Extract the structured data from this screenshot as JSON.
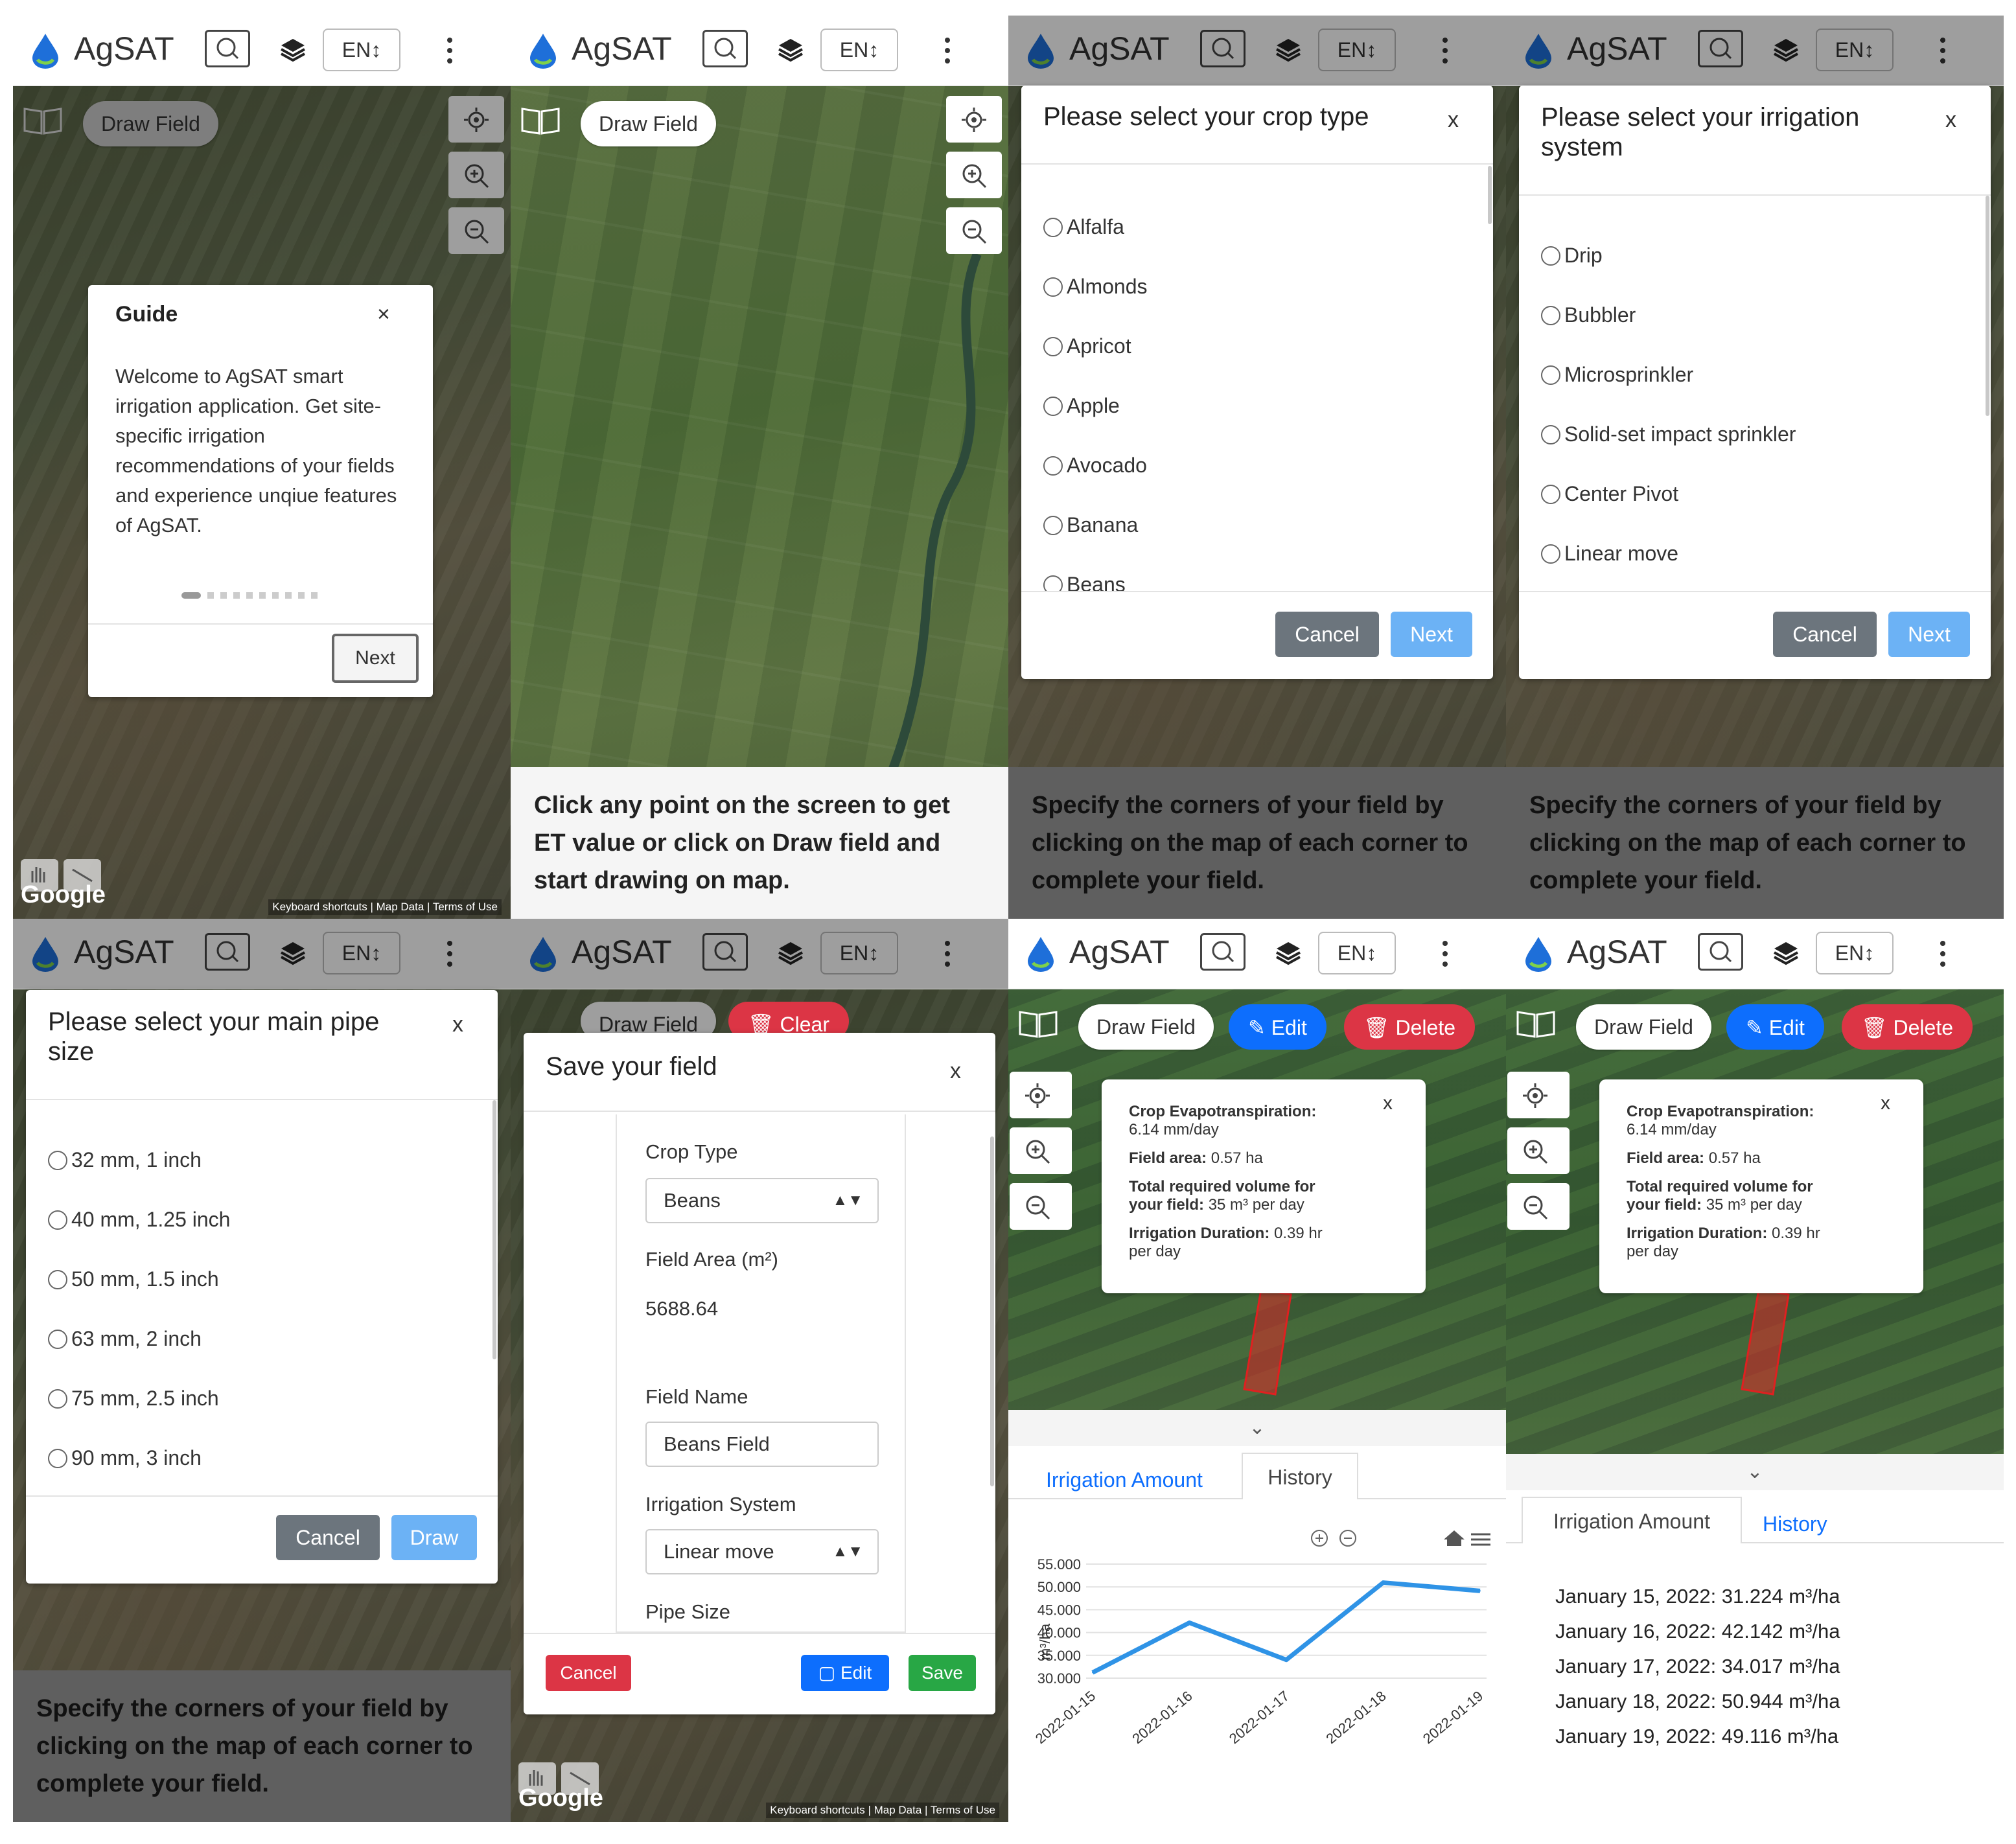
{
  "app": {
    "brand": "AgSAT",
    "lang": "EN↕"
  },
  "common": {
    "draw_field": "Draw Field",
    "edit": "Edit",
    "delete": "Delete",
    "clear": "Clear",
    "google": "Google",
    "footer": "Keyboard shortcuts | Map Data | Terms of Use",
    "caption_corners": "Specify the corners of your field by clicking on the map of each corner to complete your field.",
    "cancel": "Cancel",
    "next": "Next",
    "draw": "Draw",
    "save": "Save"
  },
  "panel1": {
    "guide_title": "Guide",
    "guide_close": "×",
    "guide_text": "Welcome to AgSAT smart irrigation application. Get site-specific irrigation recommendations of your fields and experience unqiue features of AgSAT.",
    "next": "Next"
  },
  "panel2": {
    "caption": "Click any point on the screen to get ET value or click on Draw field and start drawing on map."
  },
  "panel3": {
    "title": "Please select your crop type",
    "close": "x",
    "options": [
      "Alfalfa",
      "Almonds",
      "Apricot",
      "Apple",
      "Avocado",
      "Banana",
      "Beans"
    ]
  },
  "panel4": {
    "title_line1": "Please select your irrigation",
    "title_line2": "system",
    "close": "x",
    "options": [
      "Drip",
      "Bubbler",
      "Microsprinkler",
      "Solid-set impact sprinkler",
      "Center Pivot",
      "Linear move"
    ]
  },
  "panel5": {
    "title_line1": "Please select your main pipe",
    "title_line2": "size",
    "close": "x",
    "options": [
      "32 mm, 1 inch",
      "40 mm, 1.25 inch",
      "50 mm, 1.5 inch",
      "63 mm, 2 inch",
      "75 mm, 2.5 inch",
      "90 mm, 3 inch"
    ]
  },
  "panel6": {
    "title": "Save your field",
    "close": "x",
    "crop_type_label": "Crop Type",
    "crop_type_value": "Beans",
    "field_area_label": "Field Area (m²)",
    "field_area_value": "5688.64",
    "field_name_label": "Field Name",
    "field_name_value": "Beans Field",
    "irrigation_label": "Irrigation System",
    "irrigation_value": "Linear move",
    "pipe_label": "Pipe Size"
  },
  "popup": {
    "et_label": "Crop Evapotranspiration:",
    "et_value": "6.14 mm/day",
    "area_label": "Field area:",
    "area_value": "0.57 ha",
    "volume_label_1": "Total required volume for",
    "volume_label_2": "your field:",
    "volume_value": "35 m³ per day",
    "duration_label": "Irrigation Duration:",
    "duration_value_1": "0.39 hr",
    "duration_value_2": "per day",
    "close": "x"
  },
  "tabs": {
    "irrigation_amount": "Irrigation Amount",
    "history": "History"
  },
  "chart_data": {
    "type": "line",
    "x": [
      "2022-01-15",
      "2022-01-16",
      "2022-01-17",
      "2022-01-18",
      "2022-01-19"
    ],
    "series": [
      {
        "values": [
          31.224,
          42.142,
          34.017,
          50.944,
          49.116
        ]
      }
    ],
    "ylabel": "m³/ha",
    "yticks": [
      "55.000",
      "50.000",
      "45.000",
      "40.000",
      "35.000",
      "30.000"
    ],
    "ylim": [
      30,
      55
    ],
    "color": "#2f93e6",
    "grid": true
  },
  "history": [
    "January 15, 2022: 31.224 m³/ha",
    "January 16, 2022: 42.142 m³/ha",
    "January 17, 2022: 34.017 m³/ha",
    "January 18, 2022: 50.944 m³/ha",
    "January 19, 2022: 49.116 m³/ha"
  ],
  "colors": {
    "primary": "#0d6efd",
    "danger": "#dc3545",
    "success": "#28a745",
    "secondary": "#6c757d",
    "light_blue": "#6cb2f5"
  },
  "icons": [
    "water-drop-logo-icon",
    "search-icon",
    "layers-icon",
    "kebab-menu-icon",
    "book-icon",
    "locate-icon",
    "zoom-in-icon",
    "zoom-out-icon",
    "pencil-icon",
    "trash-icon",
    "chevron-down-icon",
    "home-icon",
    "hamburger-icon",
    "plus-circle-icon",
    "minus-circle-icon",
    "hand-icon"
  ]
}
